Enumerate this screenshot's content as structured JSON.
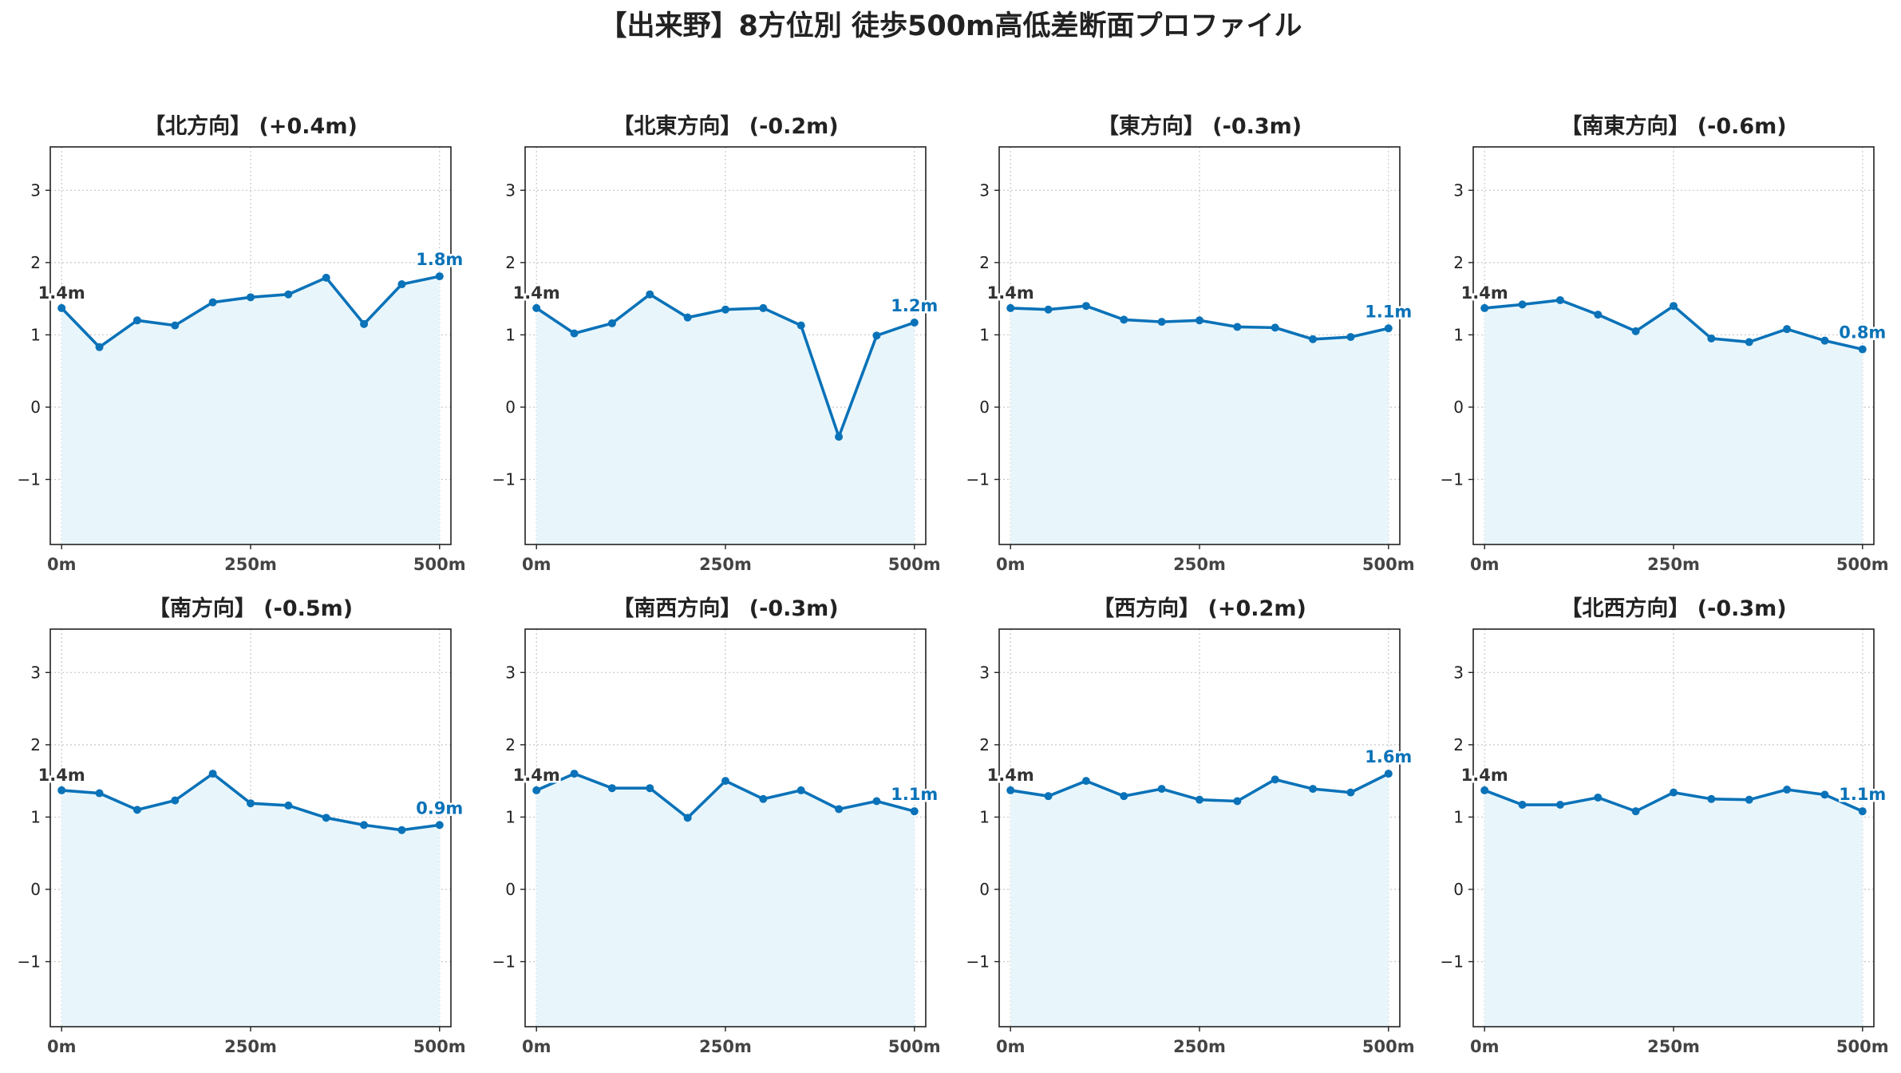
{
  "colors": {
    "line": "#0a72b8",
    "fill": "#e8f6fc",
    "start_label": "#333333"
  },
  "chart_data": {
    "type": "line",
    "title": "【出来野】8方位別 徒歩500m高低差断面プロファイル",
    "x_distances": [
      0,
      50,
      100,
      150,
      200,
      250,
      300,
      350,
      400,
      450,
      500
    ],
    "xticks": [
      0,
      250,
      500
    ],
    "xtick_labels": [
      "0m",
      "250m",
      "500m"
    ],
    "yticks": [
      -1,
      0,
      1,
      2,
      3
    ],
    "ytick_labels": [
      "−1",
      "0",
      "1",
      "2",
      "3"
    ],
    "ylim": [
      -1.9,
      3.6
    ],
    "xlim": [
      -15,
      515
    ],
    "grid": true,
    "panels": [
      {
        "title": "【北方向】 (+0.4m)",
        "values": [
          1.37,
          0.83,
          1.2,
          1.13,
          1.45,
          1.52,
          1.56,
          1.79,
          1.15,
          1.7,
          1.81
        ],
        "start_label": "1.4m",
        "end_label": "1.8m"
      },
      {
        "title": "【北東方向】 (-0.2m)",
        "values": [
          1.37,
          1.02,
          1.16,
          1.56,
          1.24,
          1.35,
          1.37,
          1.13,
          -0.41,
          0.99,
          1.17
        ],
        "start_label": "1.4m",
        "end_label": "1.2m"
      },
      {
        "title": "【東方向】 (-0.3m)",
        "values": [
          1.37,
          1.35,
          1.4,
          1.21,
          1.18,
          1.2,
          1.11,
          1.1,
          0.94,
          0.97,
          1.09
        ],
        "start_label": "1.4m",
        "end_label": "1.1m"
      },
      {
        "title": "【南東方向】 (-0.6m)",
        "values": [
          1.37,
          1.42,
          1.48,
          1.28,
          1.05,
          1.4,
          0.95,
          0.9,
          1.08,
          0.92,
          0.8
        ],
        "start_label": "1.4m",
        "end_label": "0.8m"
      },
      {
        "title": "【南方向】 (-0.5m)",
        "values": [
          1.37,
          1.33,
          1.1,
          1.23,
          1.6,
          1.19,
          1.16,
          0.99,
          0.89,
          0.82,
          0.89
        ],
        "start_label": "1.4m",
        "end_label": "0.9m"
      },
      {
        "title": "【南西方向】 (-0.3m)",
        "values": [
          1.37,
          1.6,
          1.4,
          1.4,
          0.99,
          1.5,
          1.25,
          1.37,
          1.11,
          1.22,
          1.08
        ],
        "start_label": "1.4m",
        "end_label": "1.1m"
      },
      {
        "title": "【西方向】 (+0.2m)",
        "values": [
          1.37,
          1.29,
          1.5,
          1.29,
          1.39,
          1.24,
          1.22,
          1.52,
          1.39,
          1.34,
          1.6
        ],
        "start_label": "1.4m",
        "end_label": "1.6m"
      },
      {
        "title": "【北西方向】 (-0.3m)",
        "values": [
          1.37,
          1.17,
          1.17,
          1.27,
          1.08,
          1.34,
          1.25,
          1.24,
          1.38,
          1.31,
          1.08
        ],
        "start_label": "1.4m",
        "end_label": "1.1m"
      }
    ]
  }
}
